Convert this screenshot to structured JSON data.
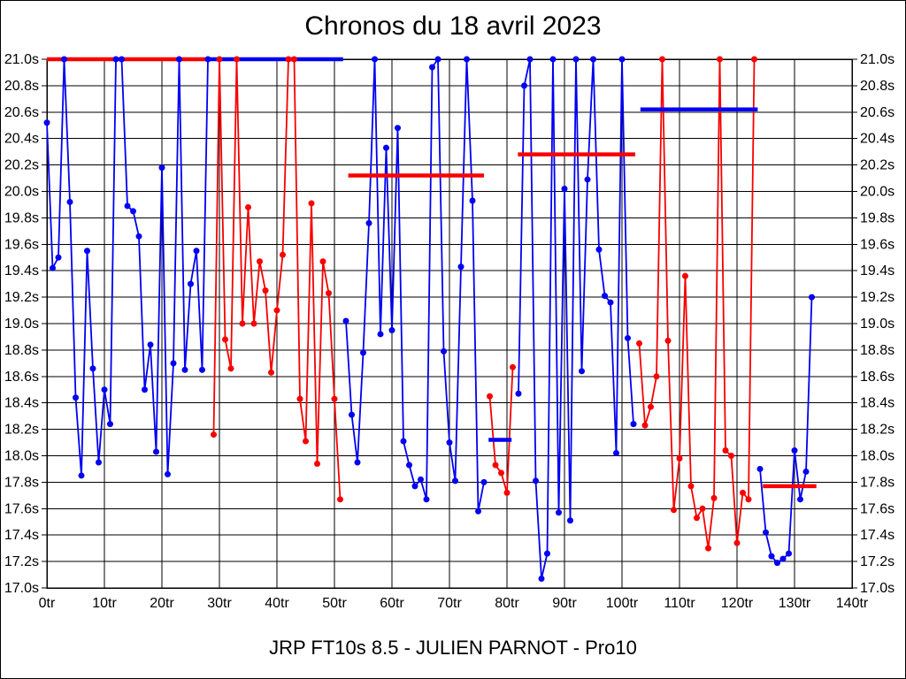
{
  "chart_data": {
    "type": "line",
    "title": "Chronos du 18 avril 2023",
    "subtitle": "JRP FT10s 8.5 - JULIEN PARNOT - Pro10",
    "x_unit": "tr",
    "y_unit": "s",
    "xlim": [
      0,
      140
    ],
    "ylim": [
      17.0,
      21.0
    ],
    "clip_max": 21.0,
    "grid": true,
    "legend": "none",
    "colors": {
      "blue": "#0000f2",
      "red": "#f80000"
    },
    "x_ticks": [
      {
        "value": 0,
        "label": "0tr"
      },
      {
        "value": 10,
        "label": "10tr"
      },
      {
        "value": 20,
        "label": "20tr"
      },
      {
        "value": 30,
        "label": "30tr"
      },
      {
        "value": 40,
        "label": "40tr"
      },
      {
        "value": 50,
        "label": "50tr"
      },
      {
        "value": 60,
        "label": "60tr"
      },
      {
        "value": 70,
        "label": "70tr"
      },
      {
        "value": 80,
        "label": "80tr"
      },
      {
        "value": 90,
        "label": "90tr"
      },
      {
        "value": 100,
        "label": "100tr"
      },
      {
        "value": 110,
        "label": "110tr"
      },
      {
        "value": 120,
        "label": "120tr"
      },
      {
        "value": 130,
        "label": "130tr"
      },
      {
        "value": 140,
        "label": "140tr"
      }
    ],
    "y_ticks": [
      {
        "value": 21.0,
        "label": "21.0s"
      },
      {
        "value": 20.8,
        "label": "20.8s"
      },
      {
        "value": 20.6,
        "label": "20.6s"
      },
      {
        "value": 20.4,
        "label": "20.4s"
      },
      {
        "value": 20.2,
        "label": "20.2s"
      },
      {
        "value": 20.0,
        "label": "20.0s"
      },
      {
        "value": 19.8,
        "label": "19.8s"
      },
      {
        "value": 19.6,
        "label": "19.6s"
      },
      {
        "value": 19.4,
        "label": "19.4s"
      },
      {
        "value": 19.2,
        "label": "19.2s"
      },
      {
        "value": 19.0,
        "label": "19.0s"
      },
      {
        "value": 18.8,
        "label": "18.8s"
      },
      {
        "value": 18.6,
        "label": "18.6s"
      },
      {
        "value": 18.4,
        "label": "18.4s"
      },
      {
        "value": 18.2,
        "label": "18.2s"
      },
      {
        "value": 18.0,
        "label": "18.0s"
      },
      {
        "value": 17.8,
        "label": "17.8s"
      },
      {
        "value": 17.6,
        "label": "17.6s"
      },
      {
        "value": 17.4,
        "label": "17.4s"
      },
      {
        "value": 17.2,
        "label": "17.2s"
      },
      {
        "value": 17.0,
        "label": "17.0s"
      }
    ],
    "series": [
      {
        "name": "run-1",
        "color": "blue",
        "start_lap": 0,
        "values": [
          20.52,
          19.42,
          19.5,
          21.0,
          19.92,
          18.44,
          17.85,
          19.55,
          18.66,
          17.95,
          18.5,
          18.24,
          21.0,
          21.0,
          19.89,
          19.85,
          19.66,
          18.5,
          18.84,
          18.03,
          20.18,
          17.86,
          18.7,
          21.0,
          18.65,
          19.3,
          19.55,
          18.65,
          21.0
        ]
      },
      {
        "name": "run-2",
        "color": "red",
        "start_lap": 29,
        "values": [
          18.16,
          21.0,
          18.88,
          18.66,
          21.0,
          19.0,
          19.88,
          19.0,
          19.47,
          19.25,
          18.63,
          19.1,
          19.52,
          21.0,
          21.0,
          18.43,
          18.11,
          19.91,
          17.94,
          19.47,
          19.23,
          18.43,
          17.67
        ]
      },
      {
        "name": "run-3",
        "color": "blue",
        "start_lap": 52,
        "values": [
          19.02,
          18.31,
          17.95,
          18.78,
          19.76,
          21.0,
          18.92,
          20.33,
          18.95,
          20.48,
          18.11,
          17.93,
          17.77,
          17.82,
          17.67,
          20.94,
          21.0,
          18.79,
          18.1,
          17.81,
          19.43,
          21.0,
          19.93,
          17.58,
          17.8
        ]
      },
      {
        "name": "run-4",
        "color": "red",
        "start_lap": 77,
        "values": [
          18.45,
          17.93,
          17.87,
          17.72,
          18.67
        ]
      },
      {
        "name": "run-5",
        "color": "blue",
        "start_lap": 82,
        "values": [
          18.47,
          20.8,
          21.0,
          17.81,
          17.07,
          17.26,
          21.0,
          17.57,
          20.02,
          17.51,
          21.0,
          18.64,
          20.09,
          21.0,
          19.56,
          19.21,
          19.16,
          18.02,
          21.0,
          18.89,
          18.24
        ]
      },
      {
        "name": "run-6",
        "color": "red",
        "start_lap": 103,
        "values": [
          18.85,
          18.23,
          18.37,
          18.6,
          21.0,
          18.87,
          17.59,
          17.98,
          19.36,
          17.77,
          17.53,
          17.6,
          17.3,
          17.68,
          21.0,
          18.04,
          18.0,
          17.34,
          17.72,
          17.67,
          21.0
        ]
      },
      {
        "name": "run-7",
        "color": "blue",
        "start_lap": 124,
        "values": [
          17.9,
          17.42,
          17.24,
          17.19,
          17.22,
          17.26,
          18.04,
          17.67,
          17.88,
          19.2
        ]
      }
    ],
    "average_lines": [
      {
        "name": "avg-run-1",
        "color": "red",
        "value": 21.0,
        "from_lap": 0,
        "to_lap": 28.3
      },
      {
        "name": "avg-run-2",
        "color": "blue",
        "value": 21.0,
        "from_lap": 28.3,
        "to_lap": 51.5
      },
      {
        "name": "avg-run-3",
        "color": "red",
        "value": 20.12,
        "from_lap": 52.4,
        "to_lap": 76.0
      },
      {
        "name": "avg-run-4",
        "color": "blue",
        "value": 18.12,
        "from_lap": 76.8,
        "to_lap": 80.8
      },
      {
        "name": "avg-run-5",
        "color": "red",
        "value": 20.28,
        "from_lap": 81.9,
        "to_lap": 102.3
      },
      {
        "name": "avg-run-6",
        "color": "blue",
        "value": 20.62,
        "from_lap": 103.2,
        "to_lap": 123.6
      },
      {
        "name": "avg-run-7",
        "color": "red",
        "value": 17.77,
        "from_lap": 124.5,
        "to_lap": 133.8
      }
    ]
  }
}
